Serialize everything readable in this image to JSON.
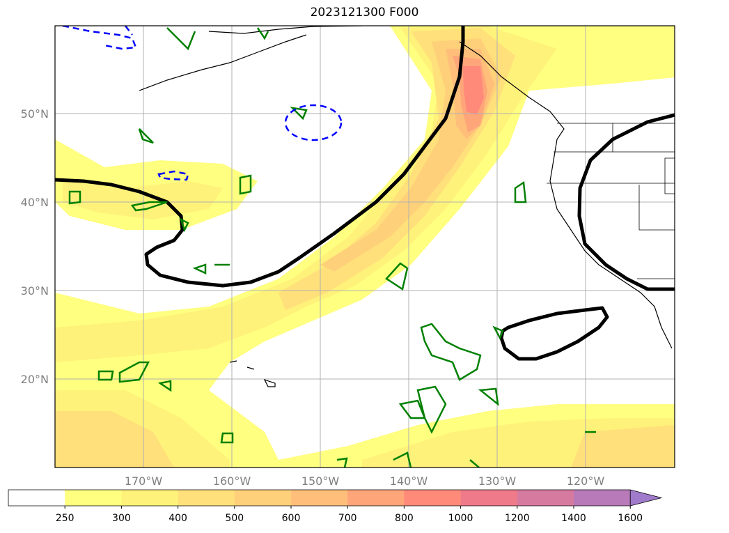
{
  "title": "2023121300 F000",
  "map": {
    "lat_labels": [
      "50°N",
      "40°N",
      "30°N",
      "20°N"
    ],
    "lon_labels": [
      "170°W",
      "160°W",
      "150°W",
      "140°W",
      "130°W",
      "120°W"
    ],
    "gridlines": true,
    "extent": {
      "lon_min": -180,
      "lon_max": -110,
      "lat_min": 10,
      "lat_max": 60
    }
  },
  "colorbar": {
    "ticks": [
      "250",
      "300",
      "400",
      "500",
      "600",
      "700",
      "800",
      "1000",
      "1200",
      "1400",
      "1600"
    ],
    "colors": [
      "#ffffff",
      "#ffff80",
      "#fff27a",
      "#ffe07a",
      "#ffd07a",
      "#ffbf7a",
      "#ffa57a",
      "#ff8a7a",
      "#ee7a8a",
      "#d67aa0",
      "#b87ab8",
      "#a07acb"
    ],
    "extend": "max"
  },
  "styles": {
    "contour_black": "#000000",
    "contour_green": "#008000",
    "contour_blue_dashed": "#0000ff"
  }
}
